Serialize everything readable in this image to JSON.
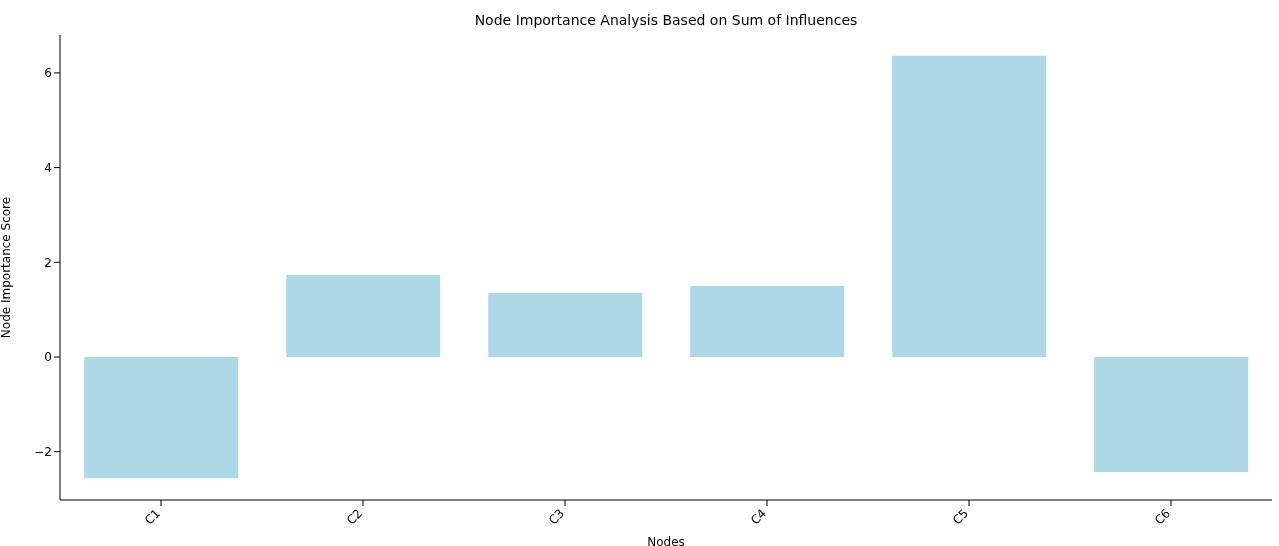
{
  "chart_data": {
    "type": "bar",
    "title": "Node Importance Analysis Based on Sum of Influences",
    "xlabel": "Nodes",
    "ylabel": "Node Importance Score",
    "categories": [
      "C1",
      "C2",
      "C3",
      "C4",
      "C5",
      "C6"
    ],
    "values": [
      -2.56,
      1.73,
      1.35,
      1.5,
      6.36,
      -2.43
    ],
    "color": "#add8e6",
    "ylim": [
      -3.02,
      6.8
    ],
    "yticks": [
      {
        "value": -2,
        "label": "−2"
      },
      0,
      2,
      4,
      6
    ],
    "grid": false
  }
}
